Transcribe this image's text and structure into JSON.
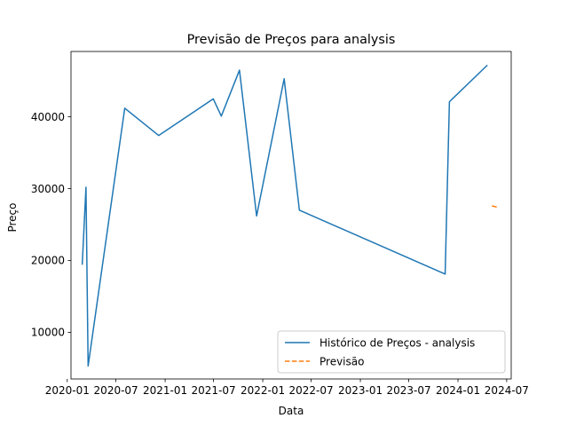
{
  "chart_data": {
    "type": "line",
    "title": "Previsão de Preços para analysis",
    "xlabel": "Data",
    "ylabel": "Preço",
    "xlim": [
      "2020-01-15",
      "2024-07-18"
    ],
    "ylim": [
      3500,
      49100
    ],
    "grid": false,
    "legend_position": "lower-right",
    "x_ticks": [
      {
        "date": "2020-01-01",
        "label": "2020-01"
      },
      {
        "date": "2020-07-01",
        "label": "2020-07"
      },
      {
        "date": "2021-01-01",
        "label": "2021-01"
      },
      {
        "date": "2021-07-01",
        "label": "2021-07"
      },
      {
        "date": "2022-01-01",
        "label": "2022-01"
      },
      {
        "date": "2022-07-01",
        "label": "2022-07"
      },
      {
        "date": "2023-01-01",
        "label": "2023-01"
      },
      {
        "date": "2023-07-01",
        "label": "2023-07"
      },
      {
        "date": "2024-01-01",
        "label": "2024-01"
      },
      {
        "date": "2024-07-01",
        "label": "2024-07"
      }
    ],
    "y_ticks": [
      10000,
      20000,
      30000,
      40000
    ],
    "series": [
      {
        "name": "Histórico de Preços - analysis",
        "color": "#1f77b4",
        "style": "solid",
        "points": [
          {
            "x": "2020-02-26",
            "y": 19400
          },
          {
            "x": "2020-03-11",
            "y": 30200
          },
          {
            "x": "2020-03-19",
            "y": 5300
          },
          {
            "x": "2020-08-03",
            "y": 41200
          },
          {
            "x": "2020-12-08",
            "y": 37400
          },
          {
            "x": "2021-06-30",
            "y": 42500
          },
          {
            "x": "2021-07-30",
            "y": 40100
          },
          {
            "x": "2021-10-06",
            "y": 46500
          },
          {
            "x": "2021-12-09",
            "y": 26200
          },
          {
            "x": "2022-03-22",
            "y": 45300
          },
          {
            "x": "2022-05-18",
            "y": 27000
          },
          {
            "x": "2023-11-14",
            "y": 18100
          },
          {
            "x": "2023-11-30",
            "y": 42100
          },
          {
            "x": "2024-04-20",
            "y": 47200
          }
        ]
      },
      {
        "name": "Previsão",
        "color": "#ff7f0e",
        "style": "dashed",
        "points": [
          {
            "x": "2024-05-07",
            "y": 27600
          },
          {
            "x": "2024-05-18",
            "y": 27500
          },
          {
            "x": "2024-05-29",
            "y": 27400
          }
        ]
      }
    ]
  }
}
